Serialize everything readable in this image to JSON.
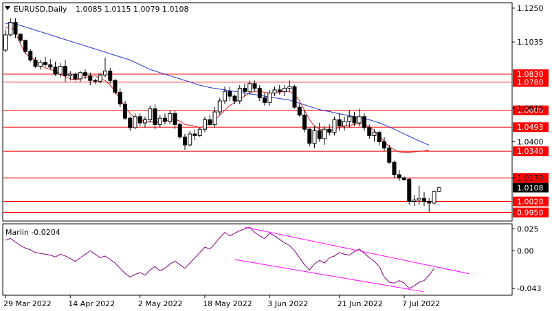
{
  "header": {
    "symbol_text": "EURUSD,Daily",
    "ohlc_text": "1.0085 1.0115 1.0079 1.0108"
  },
  "indicator": {
    "label_text": "Marlin -0.0204",
    "scale_labels": [
      "0.025",
      "0.00",
      "-0.043"
    ]
  },
  "price_scale": [
    "1.1250",
    "1.1035",
    "1.0615",
    "1.0400",
    "1.0170"
  ],
  "levels": [
    {
      "label": "1.0830",
      "value": 1.083
    },
    {
      "label": "1.0780",
      "value": 1.078
    },
    {
      "label": "1.0600",
      "value": 1.06
    },
    {
      "label": "1.0493",
      "value": 1.0493
    },
    {
      "label": "1.0340",
      "value": 1.034
    },
    {
      "label": "1.0170",
      "value": 1.017
    },
    {
      "label": "1.0020",
      "value": 1.002
    },
    {
      "label": "0.9950",
      "value": 0.995
    }
  ],
  "current_price": {
    "label": "1.0108",
    "value": 1.0108
  },
  "dates": [
    "29 Mar 2022",
    "14 Apr 2022",
    "2 May 2022",
    "18 May 2022",
    "3 Jun 2022",
    "21 Jun 2022",
    "7 Jul 2022"
  ],
  "colors": {
    "level_line": "#ff0000",
    "ma_fast": "#dd2020",
    "ma_slow": "#2030dd",
    "oscillator": "#800080",
    "channel": "#ff00ff",
    "current_price_bg": "#000000"
  },
  "chart_data": {
    "type": "candlestick",
    "symbol": "EURUSD",
    "timeframe": "Daily",
    "ylim": [
      0.99,
      1.128
    ],
    "candles": [
      [
        1.0983,
        1.111,
        1.097,
        1.108
      ],
      [
        1.108,
        1.1185,
        1.107,
        1.116
      ],
      [
        1.116,
        1.1185,
        1.106,
        1.1085
      ],
      [
        1.1085,
        1.109,
        1.103,
        1.1045
      ],
      [
        1.1045,
        1.105,
        1.096,
        1.0975
      ],
      [
        1.0975,
        1.099,
        1.091,
        1.092
      ],
      [
        1.092,
        1.094,
        1.087,
        1.088
      ],
      [
        1.088,
        1.092,
        1.086,
        1.0905
      ],
      [
        1.0905,
        1.094,
        1.088,
        1.089
      ],
      [
        1.089,
        1.0925,
        1.086,
        1.0875
      ],
      [
        1.0875,
        1.091,
        1.082,
        1.083
      ],
      [
        1.083,
        1.09,
        1.081,
        1.088
      ],
      [
        1.088,
        1.092,
        1.078,
        1.082
      ],
      [
        1.082,
        1.085,
        1.079,
        1.083
      ],
      [
        1.083,
        1.084,
        1.079,
        1.08
      ],
      [
        1.08,
        1.085,
        1.078,
        1.084
      ],
      [
        1.084,
        1.086,
        1.08,
        1.082
      ],
      [
        1.082,
        1.084,
        1.076,
        1.079
      ],
      [
        1.079,
        1.08,
        1.077,
        1.0785
      ],
      [
        1.0785,
        1.084,
        1.077,
        1.0825
      ],
      [
        1.0825,
        1.0935,
        1.081,
        1.085
      ],
      [
        1.085,
        1.087,
        1.077,
        1.079
      ],
      [
        1.079,
        1.08,
        1.07,
        1.0715
      ],
      [
        1.0715,
        1.074,
        1.062,
        1.064
      ],
      [
        1.064,
        1.066,
        1.054,
        1.055
      ],
      [
        1.055,
        1.056,
        1.047,
        1.049
      ],
      [
        1.049,
        1.058,
        1.048,
        1.056
      ],
      [
        1.056,
        1.058,
        1.05,
        1.052
      ],
      [
        1.052,
        1.056,
        1.049,
        1.054
      ],
      [
        1.054,
        1.063,
        1.052,
        1.061
      ],
      [
        1.061,
        1.064,
        1.048,
        1.051
      ],
      [
        1.051,
        1.057,
        1.049,
        1.055
      ],
      [
        1.055,
        1.058,
        1.051,
        1.053
      ],
      [
        1.053,
        1.06,
        1.051,
        1.058
      ],
      [
        1.058,
        1.06,
        1.048,
        1.051
      ],
      [
        1.051,
        1.052,
        1.042,
        1.043
      ],
      [
        1.043,
        1.045,
        1.035,
        1.038
      ],
      [
        1.038,
        1.047,
        1.037,
        1.045
      ],
      [
        1.045,
        1.048,
        1.041,
        1.044
      ],
      [
        1.044,
        1.049,
        1.043,
        1.048
      ],
      [
        1.048,
        1.056,
        1.046,
        1.054
      ],
      [
        1.054,
        1.057,
        1.05,
        1.051
      ],
      [
        1.051,
        1.062,
        1.049,
        1.059
      ],
      [
        1.059,
        1.068,
        1.057,
        1.066
      ],
      [
        1.066,
        1.075,
        1.064,
        1.072
      ],
      [
        1.072,
        1.075,
        1.066,
        1.069
      ],
      [
        1.069,
        1.07,
        1.064,
        1.066
      ],
      [
        1.066,
        1.076,
        1.064,
        1.074
      ],
      [
        1.074,
        1.077,
        1.069,
        1.072
      ],
      [
        1.072,
        1.079,
        1.07,
        1.077
      ],
      [
        1.077,
        1.079,
        1.072,
        1.074
      ],
      [
        1.074,
        1.076,
        1.066,
        1.068
      ],
      [
        1.068,
        1.071,
        1.063,
        1.065
      ],
      [
        1.065,
        1.073,
        1.063,
        1.071
      ],
      [
        1.071,
        1.075,
        1.069,
        1.073
      ],
      [
        1.073,
        1.076,
        1.07,
        1.072
      ],
      [
        1.072,
        1.076,
        1.069,
        1.074
      ],
      [
        1.074,
        1.079,
        1.072,
        1.075
      ],
      [
        1.075,
        1.076,
        1.061,
        1.062
      ],
      [
        1.062,
        1.064,
        1.056,
        1.057
      ],
      [
        1.057,
        1.06,
        1.046,
        1.048
      ],
      [
        1.048,
        1.049,
        1.037,
        1.039
      ],
      [
        1.039,
        1.05,
        1.036,
        1.047
      ],
      [
        1.047,
        1.052,
        1.04,
        1.042
      ],
      [
        1.042,
        1.05,
        1.038,
        1.048
      ],
      [
        1.048,
        1.051,
        1.044,
        1.046
      ],
      [
        1.046,
        1.056,
        1.044,
        1.054
      ],
      [
        1.054,
        1.058,
        1.047,
        1.05
      ],
      [
        1.05,
        1.056,
        1.047,
        1.053
      ],
      [
        1.053,
        1.06,
        1.049,
        1.056
      ],
      [
        1.056,
        1.059,
        1.05,
        1.052
      ],
      [
        1.052,
        1.061,
        1.05,
        1.056
      ],
      [
        1.056,
        1.058,
        1.047,
        1.049
      ],
      [
        1.049,
        1.051,
        1.042,
        1.044
      ],
      [
        1.044,
        1.048,
        1.04,
        1.046
      ],
      [
        1.046,
        1.047,
        1.038,
        1.04
      ],
      [
        1.04,
        1.043,
        1.034,
        1.036
      ],
      [
        1.036,
        1.038,
        1.026,
        1.027
      ],
      [
        1.027,
        1.028,
        1.017,
        1.019
      ],
      [
        1.019,
        1.022,
        1.015,
        1.017
      ],
      [
        1.017,
        1.018,
        1.015,
        1.016
      ],
      [
        1.016,
        1.017,
        1.0,
        1.002
      ],
      [
        1.002,
        1.006,
        0.999,
        1.003
      ],
      [
        1.003,
        1.012,
        1.0,
        1.004
      ],
      [
        1.004,
        1.008,
        0.999,
        1.002
      ],
      [
        1.002,
        1.004,
        0.9952,
        1.001
      ],
      [
        1.001,
        1.009,
        1.0,
        1.0085
      ],
      [
        1.0085,
        1.0115,
        1.0079,
        1.0108
      ]
    ],
    "series": [
      {
        "values": [
          1.112,
          1.114,
          1.11,
          1.102,
          1.096,
          1.094,
          1.092,
          1.089,
          1.087,
          1.086,
          1.085,
          1.083,
          1.0815,
          1.08,
          1.0795,
          1.08,
          1.081,
          1.0815,
          1.082,
          1.08,
          1.079,
          1.076,
          1.072,
          1.067,
          1.062,
          1.058,
          1.0555,
          1.054,
          1.053,
          1.053,
          1.052,
          1.0525,
          1.053,
          1.054,
          1.0545,
          1.053,
          1.051,
          1.0505,
          1.05,
          1.049,
          1.05,
          1.052,
          1.054,
          1.057,
          1.06,
          1.063,
          1.065,
          1.067,
          1.069,
          1.071,
          1.072,
          1.072,
          1.0715,
          1.071,
          1.071,
          1.0715,
          1.072,
          1.072,
          1.07,
          1.066,
          1.06,
          1.054,
          1.05,
          1.048,
          1.047,
          1.047,
          1.048,
          1.049,
          1.05,
          1.0505,
          1.051,
          1.0515,
          1.051,
          1.0495,
          1.047,
          1.044,
          1.04,
          1.037,
          1.035,
          1.0335,
          1.033,
          1.033,
          1.0335,
          1.034,
          1.0342,
          1.0345
        ]
      },
      {
        "values": [
          1.115,
          1.1155,
          1.115,
          1.114,
          1.113,
          1.112,
          1.111,
          1.11,
          1.109,
          1.108,
          1.107,
          1.106,
          1.105,
          1.104,
          1.103,
          1.102,
          1.101,
          1.1,
          1.099,
          1.098,
          1.097,
          1.096,
          1.095,
          1.094,
          1.093,
          1.092,
          1.0905,
          1.089,
          1.0875,
          1.086,
          1.085,
          1.084,
          1.083,
          1.082,
          1.081,
          1.08,
          1.079,
          1.078,
          1.077,
          1.076,
          1.0752,
          1.0745,
          1.074,
          1.0735,
          1.073,
          1.0725,
          1.072,
          1.0715,
          1.071,
          1.0705,
          1.07,
          1.0695,
          1.069,
          1.0685,
          1.068,
          1.0675,
          1.067,
          1.0665,
          1.0655,
          1.0645,
          1.0635,
          1.0625,
          1.0615,
          1.0605,
          1.0598,
          1.0592,
          1.0585,
          1.0578,
          1.0572,
          1.0565,
          1.056,
          1.0555,
          1.0548,
          1.054,
          1.053,
          1.052,
          1.0508,
          1.0495,
          1.048,
          1.0465,
          1.045,
          1.0435,
          1.042,
          1.0405,
          1.0392,
          1.0378
        ]
      }
    ]
  },
  "oscillator_data": {
    "values": [
      0.012,
      0.014,
      0.01,
      0.006,
      0.003,
      0.001,
      -0.002,
      -0.003,
      -0.004,
      -0.005,
      -0.007,
      -0.004,
      -0.006,
      -0.009,
      -0.012,
      -0.008,
      -0.004,
      0.0,
      -0.004,
      -0.008,
      -0.006,
      -0.01,
      -0.014,
      -0.02,
      -0.026,
      -0.03,
      -0.027,
      -0.025,
      -0.028,
      -0.022,
      -0.018,
      -0.023,
      -0.02,
      -0.015,
      -0.012,
      -0.016,
      -0.02,
      -0.014,
      -0.008,
      -0.002,
      0.004,
      0.002,
      0.008,
      0.015,
      0.021,
      0.017,
      0.02,
      0.023,
      0.025,
      0.027,
      0.021,
      0.017,
      0.014,
      0.02,
      0.017,
      0.013,
      0.009,
      0.006,
      0.0,
      -0.008,
      -0.016,
      -0.022,
      -0.015,
      -0.011,
      -0.014,
      -0.008,
      -0.006,
      -0.002,
      -0.004,
      -0.005,
      -0.001,
      0.002,
      -0.003,
      -0.008,
      -0.012,
      -0.018,
      -0.03,
      -0.036,
      -0.037,
      -0.034,
      -0.037,
      -0.043,
      -0.04,
      -0.036,
      -0.034,
      -0.028,
      -0.02
    ],
    "ylim": [
      -0.05,
      0.03
    ]
  }
}
